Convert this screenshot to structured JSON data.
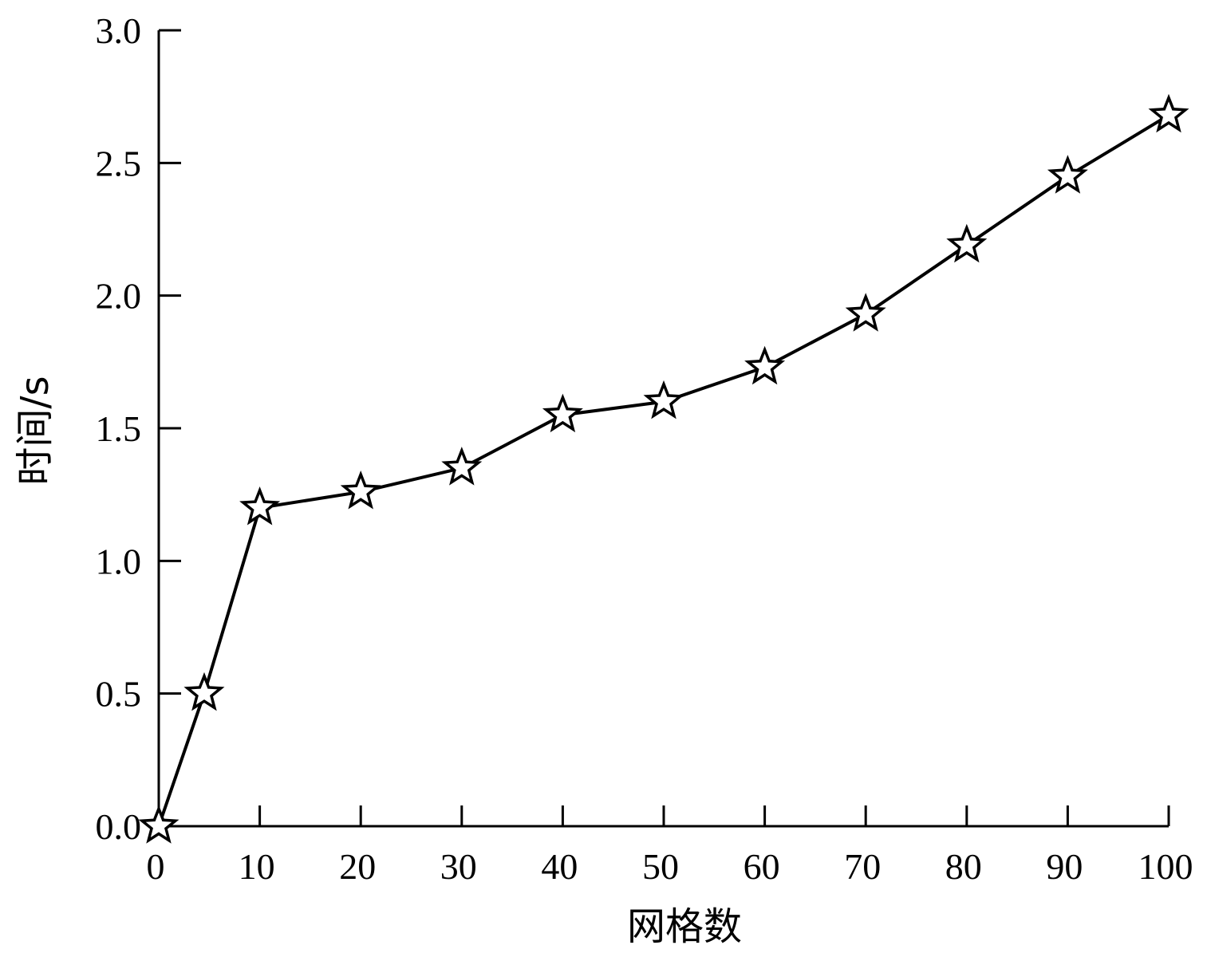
{
  "chart_data": {
    "type": "line",
    "title": "",
    "xlabel": "网格数",
    "ylabel": "时间/s",
    "xlim": [
      0,
      100
    ],
    "ylim": [
      0,
      3.0
    ],
    "x_ticks": [
      "0",
      "10",
      "20",
      "30",
      "40",
      "50",
      "60",
      "70",
      "80",
      "90",
      "100"
    ],
    "y_ticks": [
      "0.0",
      "0.5",
      "1.0",
      "1.5",
      "2.0",
      "2.5",
      "3.0"
    ],
    "grid": false,
    "legend": "none",
    "marker": "hollow-star",
    "line_color": "#000000",
    "series": [
      {
        "x": [
          0,
          4.5,
          10,
          20,
          30,
          40,
          50,
          60,
          70,
          80,
          90,
          100
        ],
        "y": [
          0.0,
          0.5,
          1.2,
          1.26,
          1.35,
          1.55,
          1.6,
          1.73,
          1.93,
          2.19,
          2.45,
          2.68
        ]
      }
    ]
  }
}
